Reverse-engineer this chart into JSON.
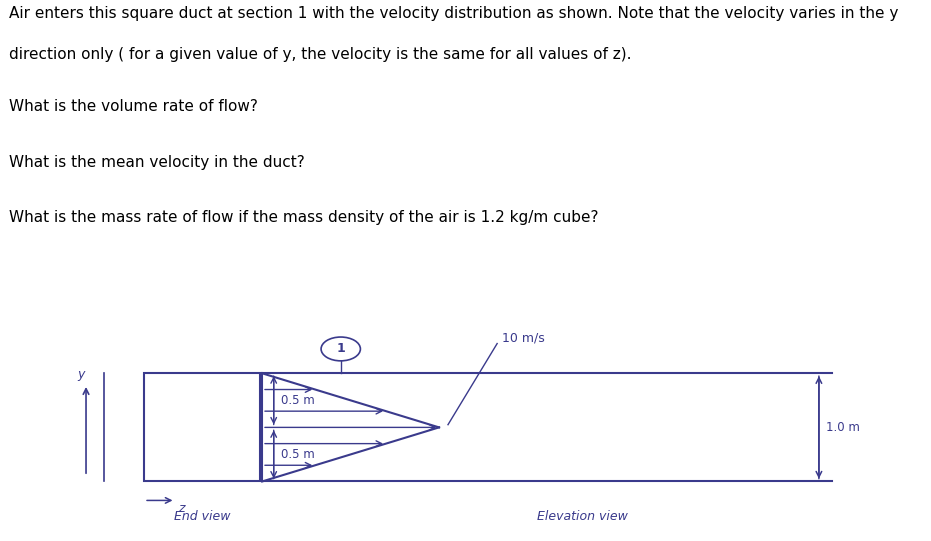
{
  "text_line1": "Air enters this square duct at section 1 with the velocity distribution as shown. Note that the velocity varies in the y",
  "text_line2": "direction only ( for a given value of y, the velocity is the same for all values of z).",
  "question1": "What is the volume rate of flow?",
  "question2": "What is the mean velocity in the duct?",
  "question3": "What is the mass rate of flow if the mass density of the air is 1.2 kg/m cube?",
  "label_velocity": "10 m/s",
  "label_05m_top": "0.5 m",
  "label_05m_bot": "0.5 m",
  "label_10m": "1.0 m",
  "label_end_view": "End view",
  "label_elev_view": "Elevation view",
  "line_color": "#3a3a8c",
  "text_color_top": "#000000",
  "diagram_bg": "#b0b0b0",
  "font_size_text": 11,
  "font_size_label": 9
}
